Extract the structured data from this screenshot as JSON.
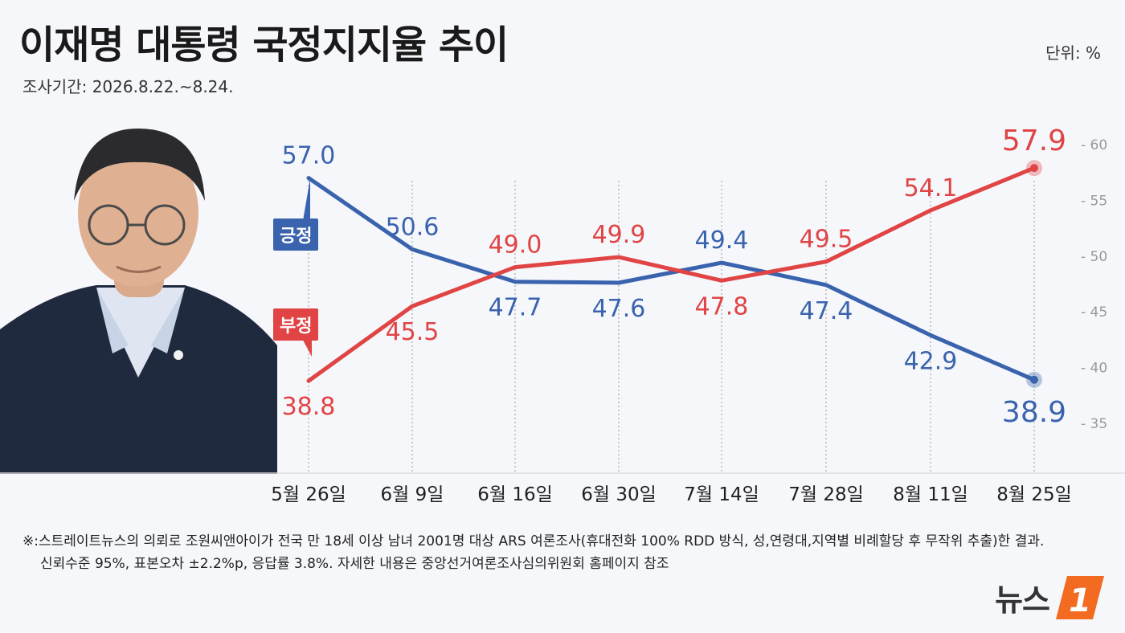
{
  "header": {
    "title": "이재명 대통령 국정지지율 추이",
    "subtitle": "조사기간: 2026.8.22.~8.24.",
    "unit": "단위: %"
  },
  "footnote": {
    "line1": "※:스트레이트뉴스의 의뢰로 조원씨앤아이가 전국 만 18세 이상 남녀 2001명 대상 ARS 여론조사(휴대전화 100% RDD 방식, 성,연령대,지역별 비례할당 후 무작위 추출)한 결과.",
    "line2": "신뢰수준 95%, 표본오차 ±2.2%p, 응답률 3.8%. 자세한 내용은 중앙선거여론조사심의위원회 홈페이지 참조"
  },
  "logo": {
    "text": "뉴스",
    "mark": "1"
  },
  "colors": {
    "positive": "#3a63ad",
    "negative": "#e04444",
    "axis": "#999999"
  },
  "chart_data": {
    "type": "line",
    "categories": [
      "5월 26일",
      "6월 9일",
      "6월 16일",
      "6월 30일",
      "7월 14일",
      "7월 28일",
      "8월 11일",
      "8월 25일"
    ],
    "series": [
      {
        "name": "긍정",
        "values": [
          57.0,
          50.6,
          47.7,
          47.6,
          49.4,
          47.4,
          42.9,
          38.9
        ]
      },
      {
        "name": "부정",
        "values": [
          38.8,
          45.5,
          49.0,
          49.9,
          47.8,
          49.5,
          54.1,
          57.9
        ]
      }
    ],
    "y_ticks": [
      60,
      55,
      50,
      45,
      40,
      35
    ],
    "ylim": [
      35,
      60
    ],
    "y_axis_side": "right",
    "grid": "vertical dotted lines at each category"
  }
}
